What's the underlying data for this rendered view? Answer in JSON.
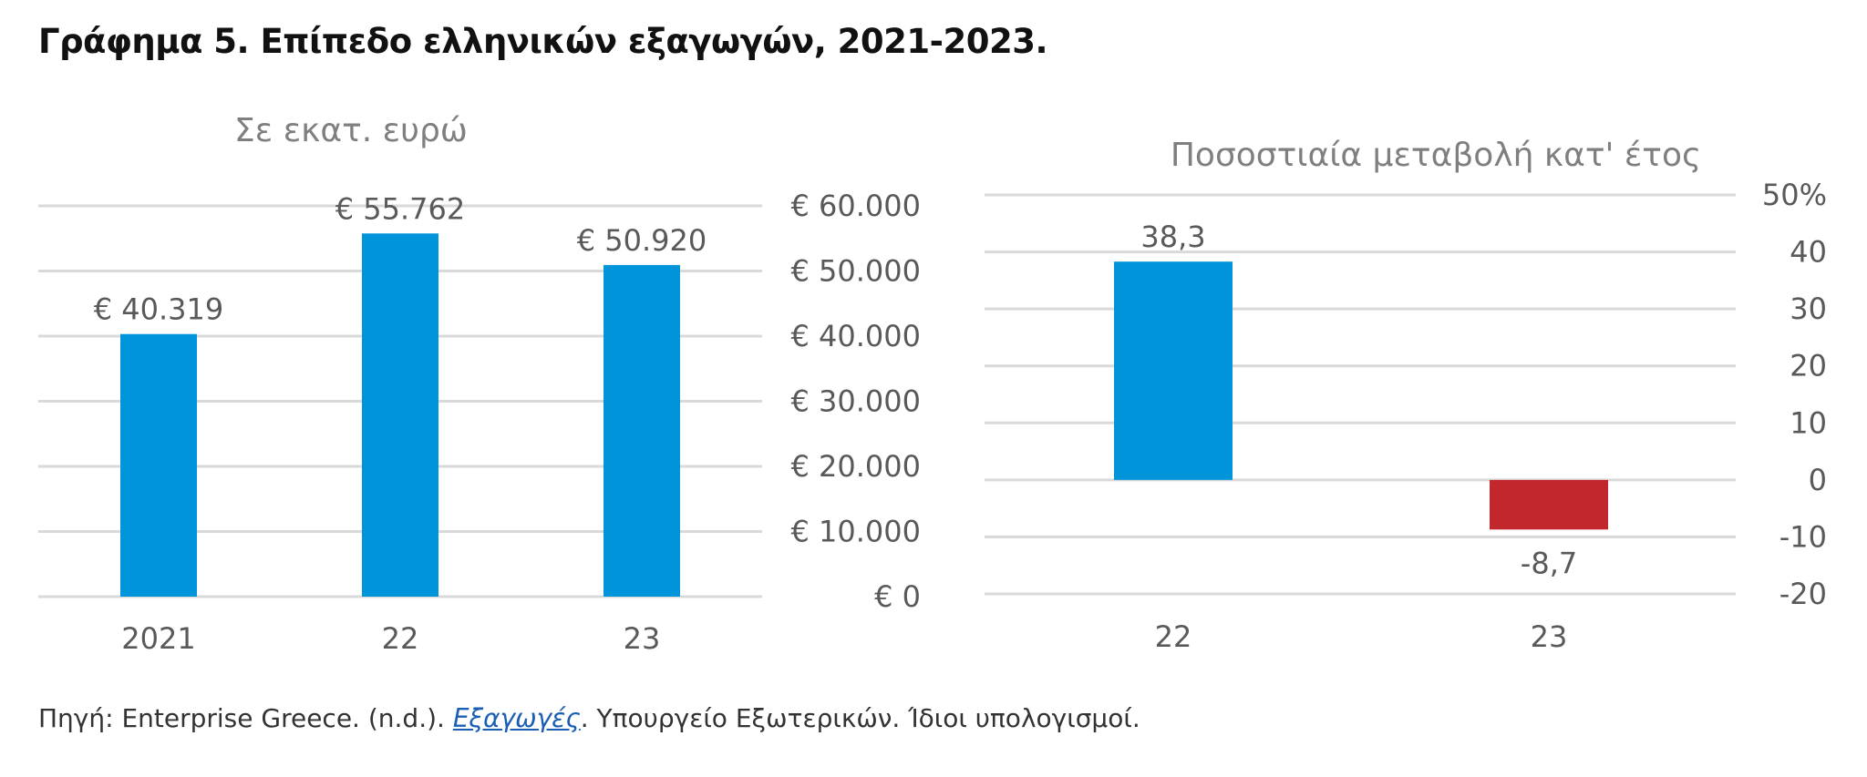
{
  "title": "Γράφημα 5. Επίπεδο ελληνικών εξαγωγών, 2021-2023.",
  "source": {
    "prefix": "Πηγή: Enterprise Greece. (n.d.). ",
    "link_text": "Εξαγωγές",
    "suffix": ". Υπουργείο Εξωτερικών. Ίδιοι υπολογισμοί."
  },
  "colors": {
    "bar": "#0094DA",
    "negative": "#C1272D",
    "grid": "#D9D9D9",
    "text": "#595959"
  },
  "chart_data": [
    {
      "type": "bar",
      "title": "Σε εκατ. ευρώ",
      "categories": [
        "2021",
        "22",
        "23"
      ],
      "values": [
        40319,
        55762,
        50920
      ],
      "value_labels": [
        "€ 40.319",
        "€ 55.762",
        "€ 50.920"
      ],
      "ylim": [
        0,
        60000
      ],
      "yticks": [
        0,
        10000,
        20000,
        30000,
        40000,
        50000,
        60000
      ],
      "ytick_labels": [
        "€ 0",
        "€ 10.000",
        "€ 20.000",
        "€ 30.000",
        "€ 40.000",
        "€ 50.000",
        "€ 60.000"
      ],
      "y_axis_side": "right",
      "grid": true
    },
    {
      "type": "bar",
      "title": "Ποσοστιαία μεταβολή κατ' έτος",
      "categories": [
        "22",
        "23"
      ],
      "values": [
        38.3,
        -8.7
      ],
      "value_labels": [
        "38,3",
        "-8,7"
      ],
      "ylim": [
        -20,
        50
      ],
      "yticks": [
        -20,
        -10,
        0,
        10,
        20,
        30,
        40,
        50
      ],
      "ytick_labels": [
        "-20",
        "-10",
        "0",
        "10",
        "20",
        "30",
        "40",
        "50%"
      ],
      "y_axis_side": "right",
      "grid": true
    }
  ]
}
